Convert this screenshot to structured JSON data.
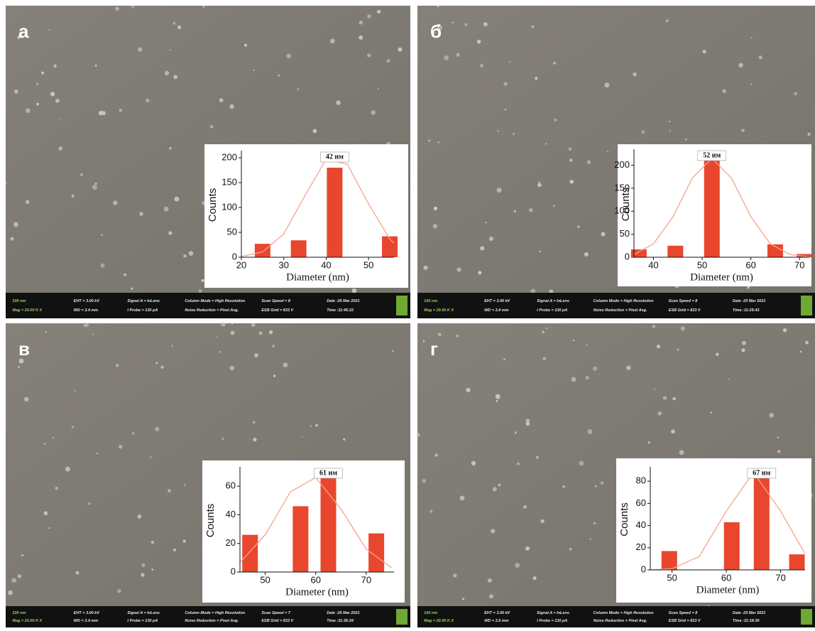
{
  "chart_data": [
    {
      "type": "bar",
      "panel_label": "а",
      "annotation": "42 нм",
      "x_label": "Diameter (nm)",
      "y_label": "Counts",
      "x": [
        25,
        33.5,
        42,
        55
      ],
      "values": [
        27,
        34,
        180,
        42
      ],
      "color": "#e8472e",
      "fit": {
        "color": "#f4a48a",
        "x": [
          20,
          25,
          30,
          35,
          40,
          45,
          50,
          55,
          56
        ],
        "values": [
          1.5,
          10.7,
          47,
          124,
          197,
          187,
          107,
          37,
          28
        ]
      },
      "xlim": [
        20,
        56
      ],
      "xticks": [
        20,
        30,
        40,
        50
      ],
      "ylim": [
        0,
        210
      ],
      "yticks": [
        0,
        50,
        100,
        150,
        200
      ],
      "grid": false
    },
    {
      "type": "bar",
      "panel_label": "б",
      "annotation": "52 нм",
      "x_label": "Diameter (nm)",
      "y_label": "Counts",
      "x": [
        37,
        44.5,
        52,
        65,
        71
      ],
      "values": [
        17,
        25,
        210,
        28,
        7
      ],
      "color": "#e8472e",
      "fit": {
        "color": "#f4a48a",
        "x": [
          36,
          40,
          44,
          48,
          52,
          56,
          60,
          64,
          68,
          72
        ],
        "values": [
          6,
          29,
          88,
          172,
          215,
          172,
          88,
          29,
          6,
          0.8
        ]
      },
      "xlim": [
        36,
        72
      ],
      "xticks": [
        40,
        50,
        60,
        70
      ],
      "ylim": [
        0,
        230
      ],
      "yticks": [
        0,
        50,
        100,
        150,
        200
      ],
      "grid": false
    },
    {
      "type": "bar",
      "panel_label": "в",
      "annotation": "61 нм",
      "x_label": "Diameter (nm)",
      "y_label": "Counts",
      "x": [
        47,
        57,
        62.5,
        72
      ],
      "values": [
        26,
        46,
        68,
        27
      ],
      "color": "#e8472e",
      "fit": {
        "color": "#f4a48a",
        "x": [
          45,
          50,
          55,
          60,
          65,
          70,
          75
        ],
        "values": [
          6.6,
          26,
          56,
          66,
          44,
          16,
          3
        ]
      },
      "xlim": [
        45,
        75.5
      ],
      "xticks": [
        50,
        60,
        70
      ],
      "ylim": [
        0,
        72
      ],
      "yticks": [
        0,
        20,
        40,
        60
      ],
      "grid": false
    },
    {
      "type": "bar",
      "panel_label": "г",
      "annotation": "67 нм",
      "x_label": "Diameter (nm)",
      "y_label": "Counts",
      "x": [
        49.5,
        61,
        66.5,
        73
      ],
      "values": [
        17,
        43,
        85,
        14
      ],
      "color": "#e8472e",
      "fit": {
        "color": "#f4a48a",
        "x": [
          46,
          50,
          55,
          60,
          65,
          70,
          74.5
        ],
        "values": [
          0,
          1,
          12,
          53,
          88,
          53,
          14.5
        ]
      },
      "xlim": [
        46,
        74.5
      ],
      "xticks": [
        50,
        60,
        70
      ],
      "ylim": [
        0,
        91
      ],
      "yticks": [
        0,
        20,
        40,
        60,
        80
      ],
      "grid": false
    }
  ],
  "panels": [
    {
      "info": [
        "100 nm",
        "Mag = 20.00 K X",
        "EHT = 3.00 kV",
        "WD = 3.4 mm",
        "Signal A = InLens",
        "I Probe = 130 pA",
        "Column Mode = High Resolution",
        "Noise Reduction = Pixel Avg.",
        "Scan Speed = 8",
        "ESB Grid = 833 V",
        "Date :25 Mar 2021",
        "Time :11:45:22"
      ]
    },
    {
      "info": [
        "100 nm",
        "Mag = 20.00 K X",
        "EHT = 3.00 kV",
        "WD = 3.4 mm",
        "Signal A = InLens",
        "I Probe = 130 pA",
        "Column Mode = High Resolution",
        "Noise Reduction = Pixel Avg.",
        "Scan Speed = 8",
        "ESB Grid = 833 V",
        "Date :25 Mar 2021",
        "Time :11:25:43"
      ]
    },
    {
      "info": [
        "100 nm",
        "Mag = 20.00 K X",
        "EHT = 3.00 kV",
        "WD = 3.4 mm",
        "Signal A = InLens",
        "I Probe = 130 pA",
        "Column Mode = High Resolution",
        "Noise Reduction = Pixel Avg.",
        "Scan Speed = 7",
        "ESB Grid = 833 V",
        "Date :25 Mar 2021",
        "Time :11:36:34"
      ]
    },
    {
      "info": [
        "100 nm",
        "Mag = 20.00 K X",
        "EHT = 3.00 kV",
        "WD = 3.5 mm",
        "Signal A = InLens",
        "I Probe = 130 pA",
        "Column Mode = High Resolution",
        "Noise Reduction = Pixel Avg.",
        "Scan Speed = 8",
        "ESB Grid = 833 V",
        "Date :25 Mar 2021",
        "Time :11:18:30"
      ]
    }
  ]
}
